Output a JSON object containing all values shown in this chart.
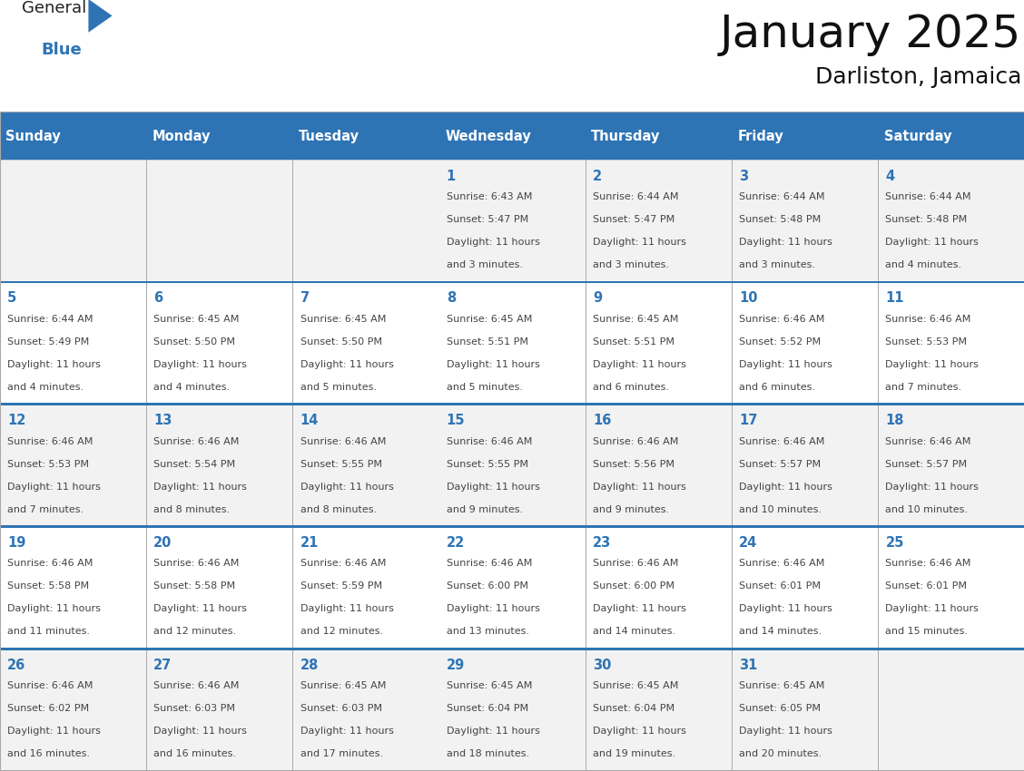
{
  "title": "January 2025",
  "subtitle": "Darliston, Jamaica",
  "header_bg": "#2E74B5",
  "header_text_color": "#FFFFFF",
  "days_of_week": [
    "Sunday",
    "Monday",
    "Tuesday",
    "Wednesday",
    "Thursday",
    "Friday",
    "Saturday"
  ],
  "title_fontsize": 36,
  "subtitle_fontsize": 18,
  "cell_text_color": "#444444",
  "day_num_color": "#2E74B5",
  "row_bg_even": "#F2F2F2",
  "row_bg_odd": "#FFFFFF",
  "grid_color": "#AAAAAA",
  "blue_sep_color": "#2E74B5",
  "logo_general_color": "#222222",
  "logo_blue_color": "#2E74B5",
  "calendar": [
    [
      {
        "day": null
      },
      {
        "day": null
      },
      {
        "day": null
      },
      {
        "day": 1,
        "sunrise": "6:43 AM",
        "sunset": "5:47 PM",
        "daylight": "11 hours",
        "daylight2": "and 3 minutes."
      },
      {
        "day": 2,
        "sunrise": "6:44 AM",
        "sunset": "5:47 PM",
        "daylight": "11 hours",
        "daylight2": "and 3 minutes."
      },
      {
        "day": 3,
        "sunrise": "6:44 AM",
        "sunset": "5:48 PM",
        "daylight": "11 hours",
        "daylight2": "and 3 minutes."
      },
      {
        "day": 4,
        "sunrise": "6:44 AM",
        "sunset": "5:48 PM",
        "daylight": "11 hours",
        "daylight2": "and 4 minutes."
      }
    ],
    [
      {
        "day": 5,
        "sunrise": "6:44 AM",
        "sunset": "5:49 PM",
        "daylight": "11 hours",
        "daylight2": "and 4 minutes."
      },
      {
        "day": 6,
        "sunrise": "6:45 AM",
        "sunset": "5:50 PM",
        "daylight": "11 hours",
        "daylight2": "and 4 minutes."
      },
      {
        "day": 7,
        "sunrise": "6:45 AM",
        "sunset": "5:50 PM",
        "daylight": "11 hours",
        "daylight2": "and 5 minutes."
      },
      {
        "day": 8,
        "sunrise": "6:45 AM",
        "sunset": "5:51 PM",
        "daylight": "11 hours",
        "daylight2": "and 5 minutes."
      },
      {
        "day": 9,
        "sunrise": "6:45 AM",
        "sunset": "5:51 PM",
        "daylight": "11 hours",
        "daylight2": "and 6 minutes."
      },
      {
        "day": 10,
        "sunrise": "6:46 AM",
        "sunset": "5:52 PM",
        "daylight": "11 hours",
        "daylight2": "and 6 minutes."
      },
      {
        "day": 11,
        "sunrise": "6:46 AM",
        "sunset": "5:53 PM",
        "daylight": "11 hours",
        "daylight2": "and 7 minutes."
      }
    ],
    [
      {
        "day": 12,
        "sunrise": "6:46 AM",
        "sunset": "5:53 PM",
        "daylight": "11 hours",
        "daylight2": "and 7 minutes."
      },
      {
        "day": 13,
        "sunrise": "6:46 AM",
        "sunset": "5:54 PM",
        "daylight": "11 hours",
        "daylight2": "and 8 minutes."
      },
      {
        "day": 14,
        "sunrise": "6:46 AM",
        "sunset": "5:55 PM",
        "daylight": "11 hours",
        "daylight2": "and 8 minutes."
      },
      {
        "day": 15,
        "sunrise": "6:46 AM",
        "sunset": "5:55 PM",
        "daylight": "11 hours",
        "daylight2": "and 9 minutes."
      },
      {
        "day": 16,
        "sunrise": "6:46 AM",
        "sunset": "5:56 PM",
        "daylight": "11 hours",
        "daylight2": "and 9 minutes."
      },
      {
        "day": 17,
        "sunrise": "6:46 AM",
        "sunset": "5:57 PM",
        "daylight": "11 hours",
        "daylight2": "and 10 minutes."
      },
      {
        "day": 18,
        "sunrise": "6:46 AM",
        "sunset": "5:57 PM",
        "daylight": "11 hours",
        "daylight2": "and 10 minutes."
      }
    ],
    [
      {
        "day": 19,
        "sunrise": "6:46 AM",
        "sunset": "5:58 PM",
        "daylight": "11 hours",
        "daylight2": "and 11 minutes."
      },
      {
        "day": 20,
        "sunrise": "6:46 AM",
        "sunset": "5:58 PM",
        "daylight": "11 hours",
        "daylight2": "and 12 minutes."
      },
      {
        "day": 21,
        "sunrise": "6:46 AM",
        "sunset": "5:59 PM",
        "daylight": "11 hours",
        "daylight2": "and 12 minutes."
      },
      {
        "day": 22,
        "sunrise": "6:46 AM",
        "sunset": "6:00 PM",
        "daylight": "11 hours",
        "daylight2": "and 13 minutes."
      },
      {
        "day": 23,
        "sunrise": "6:46 AM",
        "sunset": "6:00 PM",
        "daylight": "11 hours",
        "daylight2": "and 14 minutes."
      },
      {
        "day": 24,
        "sunrise": "6:46 AM",
        "sunset": "6:01 PM",
        "daylight": "11 hours",
        "daylight2": "and 14 minutes."
      },
      {
        "day": 25,
        "sunrise": "6:46 AM",
        "sunset": "6:01 PM",
        "daylight": "11 hours",
        "daylight2": "and 15 minutes."
      }
    ],
    [
      {
        "day": 26,
        "sunrise": "6:46 AM",
        "sunset": "6:02 PM",
        "daylight": "11 hours",
        "daylight2": "and 16 minutes."
      },
      {
        "day": 27,
        "sunrise": "6:46 AM",
        "sunset": "6:03 PM",
        "daylight": "11 hours",
        "daylight2": "and 16 minutes."
      },
      {
        "day": 28,
        "sunrise": "6:45 AM",
        "sunset": "6:03 PM",
        "daylight": "11 hours",
        "daylight2": "and 17 minutes."
      },
      {
        "day": 29,
        "sunrise": "6:45 AM",
        "sunset": "6:04 PM",
        "daylight": "11 hours",
        "daylight2": "and 18 minutes."
      },
      {
        "day": 30,
        "sunrise": "6:45 AM",
        "sunset": "6:04 PM",
        "daylight": "11 hours",
        "daylight2": "and 19 minutes."
      },
      {
        "day": 31,
        "sunrise": "6:45 AM",
        "sunset": "6:05 PM",
        "daylight": "11 hours",
        "daylight2": "and 20 minutes."
      },
      {
        "day": null
      }
    ]
  ]
}
